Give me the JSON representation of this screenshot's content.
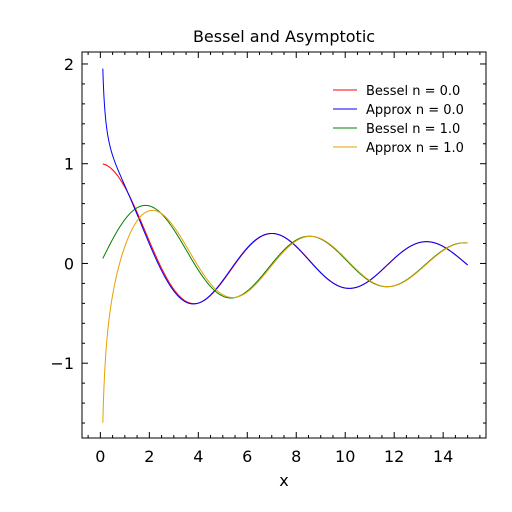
{
  "chart_data": {
    "type": "line",
    "title": "Bessel and Asymptotic",
    "xlabel": "x",
    "ylabel": "",
    "xlim": [
      -0.75,
      15.75
    ],
    "ylim": [
      -1.75,
      2.12
    ],
    "xticks": [
      0,
      2,
      4,
      6,
      8,
      10,
      12,
      14
    ],
    "xtick_labels": [
      "0",
      "2",
      "4",
      "6",
      "8",
      "10",
      "12",
      "14"
    ],
    "yticks": [
      -1,
      0,
      1,
      2
    ],
    "ytick_labels": [
      "−1",
      "0",
      "1",
      "2"
    ],
    "grid": false,
    "legend_position": "top-right",
    "x_range": [
      0.1,
      15
    ],
    "series": [
      {
        "name": "Bessel n = 0.0",
        "function": "besselj",
        "order": 0,
        "color": "#ff0000"
      },
      {
        "name": "Approx n = 0.0",
        "function": "asymptotic",
        "order": 0,
        "color": "#0000ff"
      },
      {
        "name": "Bessel n = 1.0",
        "function": "besselj",
        "order": 1,
        "color": "#008000"
      },
      {
        "name": "Approx n = 1.0",
        "function": "asymptotic",
        "order": 1,
        "color": "#e6a000"
      }
    ]
  }
}
